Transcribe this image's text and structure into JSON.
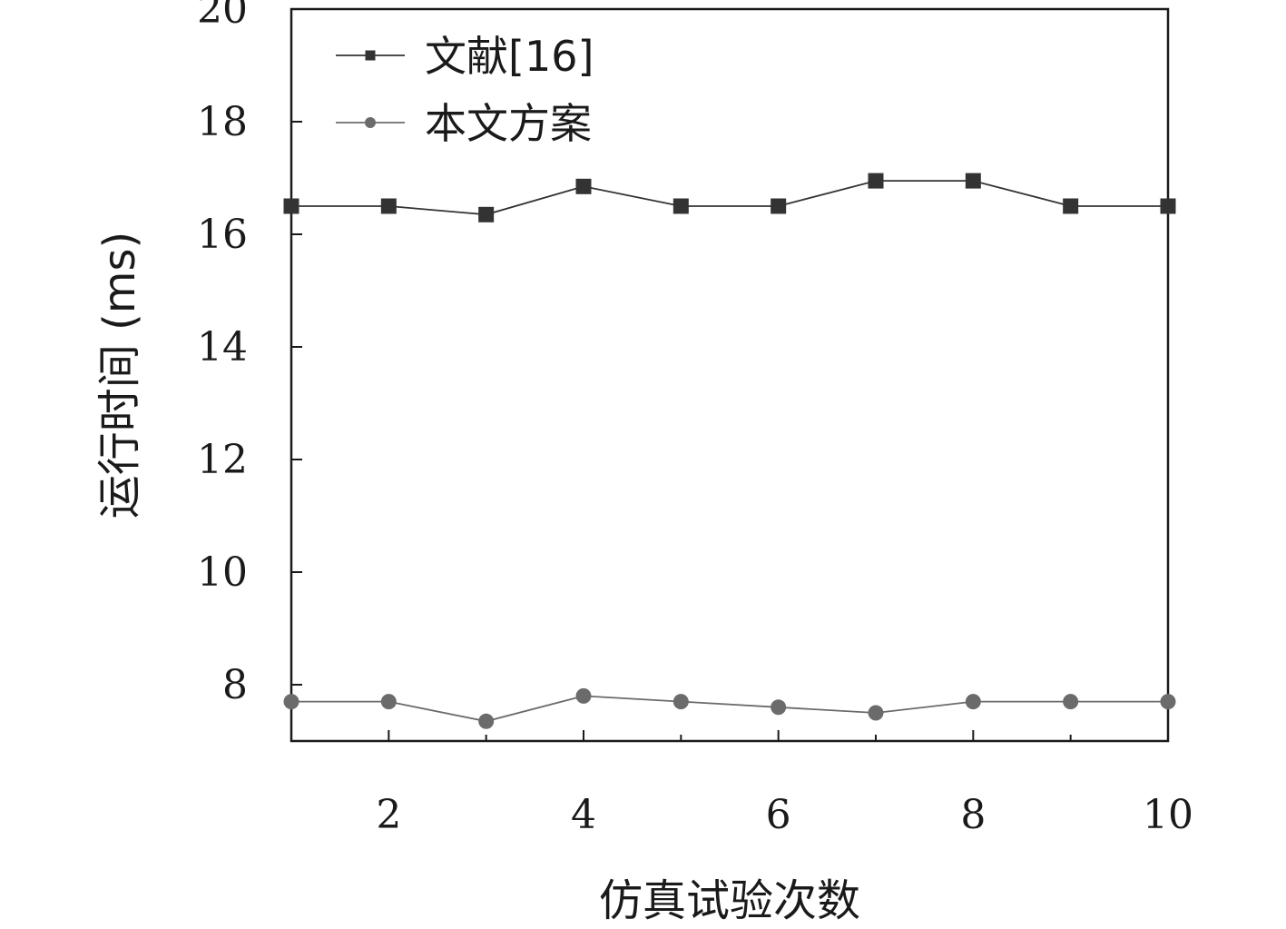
{
  "chart_data": {
    "type": "line",
    "title": "",
    "xlabel": "仿真试验次数",
    "ylabel": "运行时间 (ms)",
    "xlim": [
      1,
      10
    ],
    "ylim": [
      7,
      20
    ],
    "xticks": [
      2,
      4,
      6,
      8,
      10
    ],
    "yticks": [
      8,
      10,
      12,
      14,
      16,
      18,
      20
    ],
    "grid": false,
    "legend_position": "top-left",
    "x": [
      1,
      2,
      3,
      4,
      5,
      6,
      7,
      8,
      9,
      10
    ],
    "series": [
      {
        "name": "文献[16]",
        "marker": "square",
        "color": "#333333",
        "values": [
          16.5,
          16.5,
          16.35,
          16.85,
          16.5,
          16.5,
          16.95,
          16.95,
          16.5,
          16.5
        ]
      },
      {
        "name": "本文方案",
        "marker": "circle",
        "color": "#6b6b6b",
        "values": [
          7.7,
          7.7,
          7.35,
          7.8,
          7.7,
          7.6,
          7.5,
          7.7,
          7.7,
          7.7
        ]
      }
    ]
  }
}
